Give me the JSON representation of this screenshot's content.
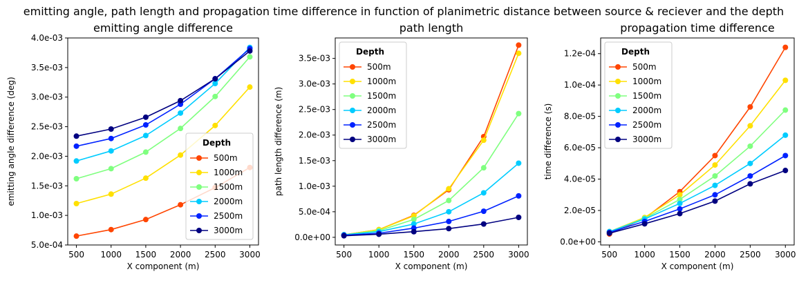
{
  "suptitle": "emitting angle, path length and propagation time difference in function of planimetric distance between source & reciever and the depth",
  "series_colors": [
    "#ff4500",
    "#ffe000",
    "#7fff7f",
    "#00ccff",
    "#0022ff",
    "#000080"
  ],
  "chart_data": [
    {
      "type": "line",
      "title": "emitting angle difference",
      "xlabel": "X component (m)",
      "ylabel": "emitting angle difference (deg)",
      "x": [
        500,
        1000,
        1500,
        2000,
        2500,
        3000
      ],
      "xticks": [
        "500",
        "1000",
        "1500",
        "2000",
        "2500",
        "3000"
      ],
      "xlim": [
        375,
        3125
      ],
      "ylim": [
        0.0005,
        0.004
      ],
      "yticks": [
        0.0005,
        0.001,
        0.0015,
        0.002,
        0.0025,
        0.003,
        0.0035,
        0.004
      ],
      "ytick_labels": [
        "5.0e-04",
        "1.0e-03",
        "1.5e-03",
        "2.0e-03",
        "2.5e-03",
        "3.0e-03",
        "3.5e-03",
        "4.0e-03"
      ],
      "legend_title": "Depth",
      "legend_position": "lower-right",
      "series": [
        {
          "name": "500m",
          "values": [
            0.00065,
            0.00076,
            0.00093,
            0.00118,
            0.00147,
            0.00181
          ]
        },
        {
          "name": "1000m",
          "values": [
            0.0012,
            0.00136,
            0.00163,
            0.00202,
            0.00252,
            0.00317
          ]
        },
        {
          "name": "1500m",
          "values": [
            0.00162,
            0.00179,
            0.00207,
            0.00247,
            0.00301,
            0.00368
          ]
        },
        {
          "name": "2000m",
          "values": [
            0.00192,
            0.00209,
            0.00235,
            0.00273,
            0.00323,
            0.00384
          ]
        },
        {
          "name": "2500m",
          "values": [
            0.00217,
            0.0023,
            0.00253,
            0.00288,
            0.00331,
            0.00382
          ]
        },
        {
          "name": "3000m",
          "values": [
            0.00234,
            0.00246,
            0.00266,
            0.00294,
            0.00331,
            0.00378
          ]
        }
      ]
    },
    {
      "type": "line",
      "title": "path length",
      "xlabel": "X component (m)",
      "ylabel": "path length difference (m)",
      "x": [
        500,
        1000,
        1500,
        2000,
        2500,
        3000
      ],
      "xticks": [
        "500",
        "1000",
        "1500",
        "2000",
        "2500",
        "3000"
      ],
      "xlim": [
        375,
        3125
      ],
      "ylim": [
        -0.00015,
        0.0039
      ],
      "yticks": [
        0,
        0.0005,
        0.001,
        0.0015,
        0.002,
        0.0025,
        0.003,
        0.0035
      ],
      "ytick_labels": [
        "0.0e+00",
        "5.0e-04",
        "1.0e-03",
        "1.5e-03",
        "2.0e-03",
        "2.5e-03",
        "3.0e-03",
        "3.5e-03"
      ],
      "legend_title": "Depth",
      "legend_position": "upper-left",
      "series": [
        {
          "name": "500m",
          "values": [
            5e-05,
            0.00015,
            0.00043,
            0.00093,
            0.00197,
            0.00376
          ]
        },
        {
          "name": "1000m",
          "values": [
            5e-05,
            0.00015,
            0.00042,
            0.00095,
            0.0019,
            0.0036
          ]
        },
        {
          "name": "1500m",
          "values": [
            5e-05,
            0.00013,
            0.00035,
            0.00072,
            0.00136,
            0.00242
          ]
        },
        {
          "name": "2000m",
          "values": [
            5e-05,
            0.00011,
            0.00026,
            0.0005,
            0.00087,
            0.00145
          ]
        },
        {
          "name": "2500m",
          "values": [
            4e-05,
            8e-05,
            0.00018,
            0.00031,
            0.00051,
            0.00081
          ]
        },
        {
          "name": "3000m",
          "values": [
            3e-05,
            6e-05,
            0.00011,
            0.00017,
            0.00026,
            0.00039
          ]
        }
      ]
    },
    {
      "type": "line",
      "title": "propagation time difference",
      "xlabel": "X component (m)",
      "ylabel": "time difference (s)",
      "x": [
        500,
        1000,
        1500,
        2000,
        2500,
        3000
      ],
      "xticks": [
        "500",
        "1000",
        "1500",
        "2000",
        "2500",
        "3000"
      ],
      "xlim": [
        375,
        3125
      ],
      "ylim": [
        -2e-06,
        0.00013
      ],
      "yticks": [
        0,
        2e-05,
        4e-05,
        6e-05,
        8e-05,
        0.0001,
        0.00012
      ],
      "ytick_labels": [
        "0.0e+00",
        "2.0e-05",
        "4.0e-05",
        "6.0e-05",
        "8.0e-05",
        "1.0e-04",
        "1.2e-04"
      ],
      "legend_title": "Depth",
      "legend_position": "upper-left",
      "series": [
        {
          "name": "500m",
          "values": [
            5e-06,
            1.5e-05,
            3.2e-05,
            5.5e-05,
            8.6e-05,
            0.000124
          ]
        },
        {
          "name": "1000m",
          "values": [
            6.5e-06,
            1.55e-05,
            3e-05,
            4.9e-05,
            7.4e-05,
            0.000103
          ]
        },
        {
          "name": "1500m",
          "values": [
            6.5e-06,
            1.5e-05,
            2.7e-05,
            4.2e-05,
            6.1e-05,
            8.4e-05
          ]
        },
        {
          "name": "2000m",
          "values": [
            6.5e-06,
            1.45e-05,
            2.45e-05,
            3.6e-05,
            5e-05,
            6.8e-05
          ]
        },
        {
          "name": "2500m",
          "values": [
            6e-06,
            1.3e-05,
            2.1e-05,
            3e-05,
            4.2e-05,
            5.5e-05
          ]
        },
        {
          "name": "3000m",
          "values": [
            5.5e-06,
            1.15e-05,
            1.8e-05,
            2.6e-05,
            3.7e-05,
            4.55e-05
          ]
        }
      ]
    }
  ]
}
